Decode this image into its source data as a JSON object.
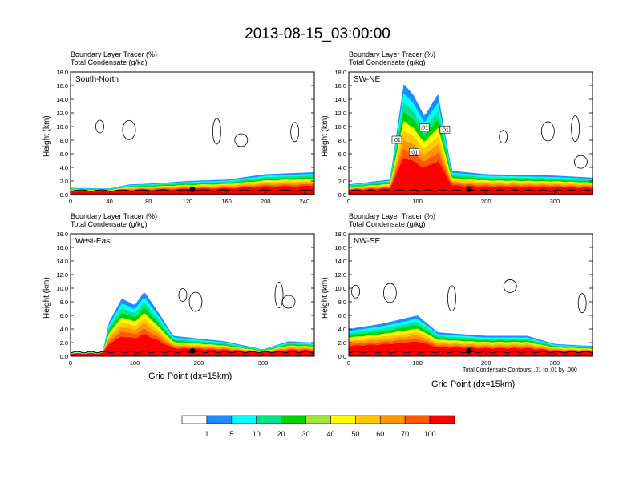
{
  "title": "2013-08-15_03:00:00",
  "panels": [
    {
      "label": "South-North",
      "xticks": [
        "0",
        "40",
        "80",
        "120",
        "160",
        "200",
        "240"
      ],
      "xmax": 250,
      "field_title": "Boundary Layer Tracer    (%)",
      "contour_title": "Total Condensate    (g/kg)",
      "ylabel": "Height (km)",
      "xlabel": "",
      "note": ""
    },
    {
      "label": "SW-NE",
      "xticks": [
        "0",
        "100",
        "200",
        "300"
      ],
      "xmax": 355,
      "field_title": "Boundary Layer Tracer    (%)",
      "contour_title": "Total Condensate    (g/kg)",
      "ylabel": "Height (km)",
      "xlabel": "",
      "note": ""
    },
    {
      "label": "West-East",
      "xticks": [
        "0",
        "100",
        "200",
        "300"
      ],
      "xmax": 380,
      "field_title": "Boundary Layer Tracer    (%)",
      "contour_title": "Total Condensate    (g/kg)",
      "ylabel": "Height (km)",
      "xlabel": "Grid Point (dx=15km)",
      "note": ""
    },
    {
      "label": "NW-SE",
      "xticks": [
        "0",
        "100",
        "200",
        "300"
      ],
      "xmax": 355,
      "field_title": "Boundary Layer Tracer    (%)",
      "contour_title": "Total Condensate    (g/kg)",
      "ylabel": "Height (km)",
      "xlabel": "Grid Point (dx=15km)",
      "note": "Total Condensate Contours: .01 to .01 by .000"
    }
  ],
  "yticks": [
    "0.0",
    "2.0",
    "4.0",
    "6.0",
    "8.0",
    "10.0",
    "12.0",
    "14.0",
    "16.0",
    "18.0"
  ],
  "colorbar": {
    "labels": [
      "1",
      "5",
      "10",
      "20",
      "30",
      "40",
      "50",
      "60",
      "70",
      "100"
    ],
    "colors": [
      "#ffffff",
      "#1e8cff",
      "#00ffff",
      "#00e48c",
      "#00d200",
      "#a0e632",
      "#ffff00",
      "#ffc800",
      "#ff9600",
      "#ff5a00",
      "#ff0000"
    ]
  },
  "chart_data": [
    {
      "type": "heatmap",
      "panel": "South-North",
      "y_unit": "km",
      "ylim": [
        0,
        18
      ],
      "xlim": [
        0,
        250
      ],
      "tracer_profile": [
        {
          "x": 0,
          "top_km": 1.0
        },
        {
          "x": 40,
          "top_km": 0.9
        },
        {
          "x": 60,
          "top_km": 1.5
        },
        {
          "x": 80,
          "top_km": 1.6
        },
        {
          "x": 120,
          "top_km": 2.0
        },
        {
          "x": 160,
          "top_km": 2.2
        },
        {
          "x": 200,
          "top_km": 3.0
        },
        {
          "x": 250,
          "top_km": 3.3
        }
      ],
      "condensate_contour_g_kg": 0.01
    },
    {
      "type": "heatmap",
      "panel": "SW-NE",
      "y_unit": "km",
      "ylim": [
        0,
        18
      ],
      "xlim": [
        0,
        355
      ],
      "tracer_profile": [
        {
          "x": 0,
          "top_km": 1.5
        },
        {
          "x": 60,
          "top_km": 2.2
        },
        {
          "x": 80,
          "top_km": 16.3
        },
        {
          "x": 95,
          "top_km": 14.5
        },
        {
          "x": 110,
          "top_km": 11.5
        },
        {
          "x": 130,
          "top_km": 14.8
        },
        {
          "x": 150,
          "top_km": 3.5
        },
        {
          "x": 200,
          "top_km": 3.0
        },
        {
          "x": 300,
          "top_km": 2.8
        },
        {
          "x": 355,
          "top_km": 2.5
        }
      ],
      "contour_labels": [
        ".01",
        ".01",
        ".01",
        ".01"
      ],
      "condensate_contour_g_kg": 0.01
    },
    {
      "type": "heatmap",
      "panel": "West-East",
      "y_unit": "km",
      "ylim": [
        0,
        18
      ],
      "xlim": [
        0,
        380
      ],
      "tracer_profile": [
        {
          "x": 0,
          "top_km": 0.5
        },
        {
          "x": 50,
          "top_km": 0.6
        },
        {
          "x": 60,
          "top_km": 5.0
        },
        {
          "x": 80,
          "top_km": 8.5
        },
        {
          "x": 100,
          "top_km": 7.5
        },
        {
          "x": 115,
          "top_km": 9.5
        },
        {
          "x": 140,
          "top_km": 6.0
        },
        {
          "x": 160,
          "top_km": 3.0
        },
        {
          "x": 240,
          "top_km": 2.2
        },
        {
          "x": 300,
          "top_km": 1.0
        },
        {
          "x": 340,
          "top_km": 2.2
        },
        {
          "x": 380,
          "top_km": 2.0
        }
      ],
      "condensate_contour_g_kg": 0.01
    },
    {
      "type": "heatmap",
      "panel": "NW-SE",
      "y_unit": "km",
      "ylim": [
        0,
        18
      ],
      "xlim": [
        0,
        355
      ],
      "tracer_profile": [
        {
          "x": 0,
          "top_km": 4.0
        },
        {
          "x": 50,
          "top_km": 4.8
        },
        {
          "x": 100,
          "top_km": 6.0
        },
        {
          "x": 130,
          "top_km": 3.5
        },
        {
          "x": 200,
          "top_km": 3.0
        },
        {
          "x": 260,
          "top_km": 3.0
        },
        {
          "x": 300,
          "top_km": 1.8
        },
        {
          "x": 355,
          "top_km": 1.5
        }
      ],
      "condensate_contour_g_kg": 0.01
    }
  ]
}
